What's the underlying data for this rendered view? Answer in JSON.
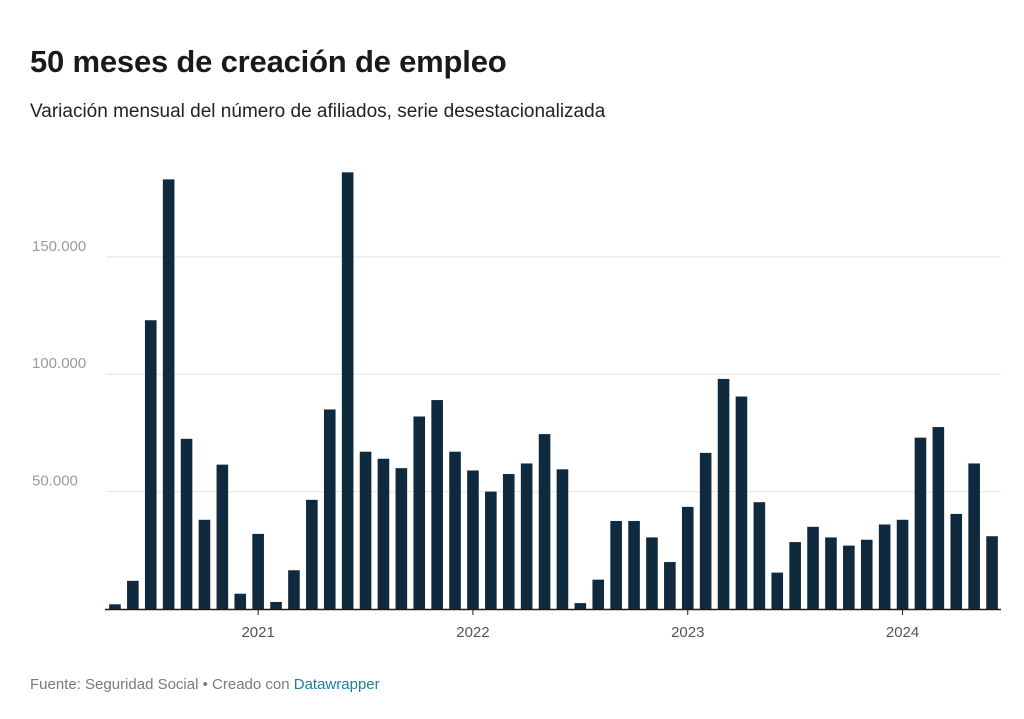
{
  "title": "50 meses de creación de empleo",
  "subtitle": "Variación mensual del número de afiliados, serie desestacionalizada",
  "footer": {
    "source_text": "Fuente: Seguridad Social • Creado con ",
    "link_label": "Datawrapper"
  },
  "colors": {
    "bar": "#0f2a3e",
    "grid": "#e4e4e4",
    "axis": "#1a1a1a",
    "tick_label": "#9a9a9a",
    "year_label": "#555555"
  },
  "chart_data": {
    "type": "bar",
    "title": "50 meses de creación de empleo",
    "subtitle": "Variación mensual del número de afiliados, serie desestacionalizada",
    "xlabel": "",
    "ylabel": "",
    "ylim": [
      0,
      187000
    ],
    "yticks": [
      50000,
      100000,
      150000
    ],
    "ytick_labels": [
      "50.000",
      "100.000",
      "150.000"
    ],
    "grid": true,
    "x_axis_labels": [
      {
        "label": "2021",
        "month_index": 8
      },
      {
        "label": "2022",
        "month_index": 20
      },
      {
        "label": "2023",
        "month_index": 32
      },
      {
        "label": "2024",
        "month_index": 44
      }
    ],
    "values": [
      2000,
      12000,
      123000,
      183000,
      72500,
      38000,
      61500,
      6500,
      32000,
      3000,
      16500,
      46500,
      85000,
      186000,
      67000,
      64000,
      60000,
      82000,
      89000,
      67000,
      59000,
      50000,
      57500,
      62000,
      74500,
      59500,
      2500,
      12500,
      37500,
      37500,
      30500,
      20000,
      43500,
      66500,
      98000,
      90500,
      45500,
      15500,
      28500,
      35000,
      30500,
      27000,
      29500,
      36000,
      38000,
      73000,
      77500,
      40500,
      62000,
      31000
    ]
  }
}
